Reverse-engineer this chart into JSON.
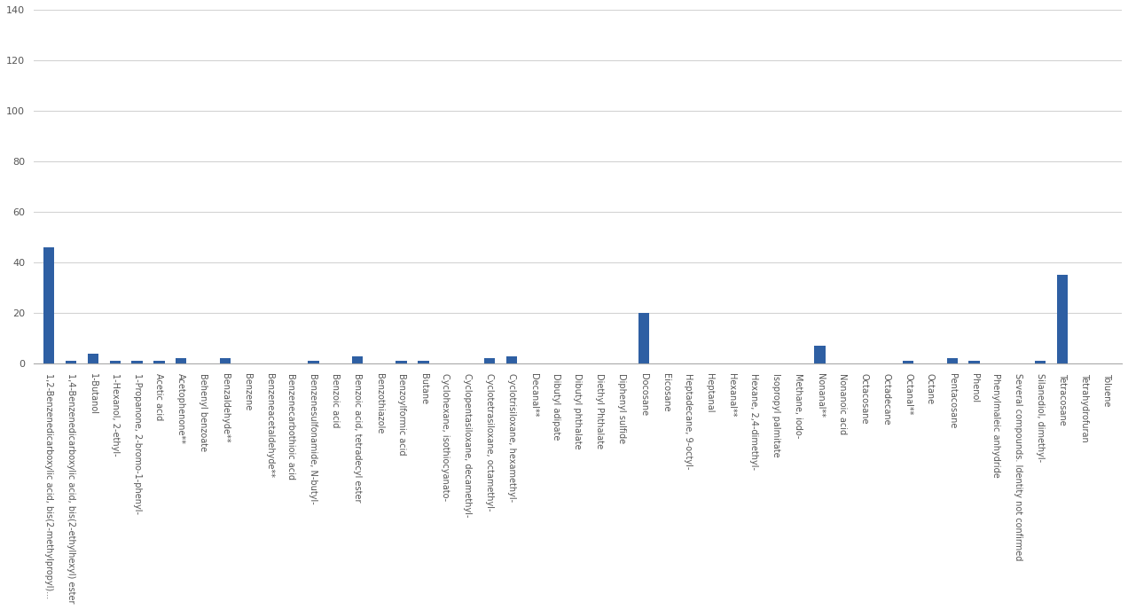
{
  "categories": [
    "1,2-Benzenedicarboxylic acid, bis(2-methylpropyl)...",
    "1,4-Benzenedicarboxylic acid, bis(2-ethylhexyl) ester",
    "1-Butanol",
    "1-Hexanol, 2-ethyl-",
    "1-Propanone, 2-bromo-1-phenyl-",
    "Acetic acid",
    "Acetophenone**",
    "Behenyl benzoate",
    "Benzaldehyde**",
    "Benzene",
    "Benzeneacetaldehyde**",
    "Benzenecarbothioic acid",
    "Benzenesulfonamide, N-butyl-",
    "Benzoic acid",
    "Benzoic acid, tetradecyl ester",
    "Benzothiazole",
    "Benzoylformic acid",
    "Butane",
    "Cyclohexane, isothiocyanato-",
    "Cyclopentasiloxane, decamethyl-",
    "Cyclotetrasiloxane, octamethyl-",
    "Cyclotrisiloxane, hexamethyl-",
    "Decanal**",
    "Dibutyl adipate",
    "Dibutyl phthalate",
    "Diethyl Phthalate",
    "Diphenyl sulfide",
    "Docosane",
    "Eicosane",
    "Heptadecane, 9-octyl-",
    "Heptanal",
    "Hexanal**",
    "Hexane, 2,4-dimethyl-",
    "Isopropyl palmitate",
    "Methane, iodo-",
    "Nonanal**",
    "Nonanoic acid",
    "Octacosane",
    "Octadecane",
    "Octanal**",
    "Octane",
    "Pentacosane",
    "Phenol",
    "Phenylmaleic anhydride",
    "Several compounds. Identity not confirmed",
    "Silanediol, dimethyl-",
    "Tetracosane",
    "Tetrahydrofuran",
    "Toluene"
  ],
  "values": [
    46,
    1,
    4,
    1,
    1,
    1,
    2,
    0,
    2,
    0,
    0,
    0,
    1,
    0,
    3,
    0,
    1,
    1,
    0,
    0,
    2,
    3,
    0,
    0,
    0,
    0,
    0,
    20,
    0,
    0,
    0,
    0,
    0,
    0,
    0,
    7,
    0,
    0,
    0,
    1,
    0,
    2,
    1,
    0,
    0,
    1,
    35,
    0,
    0
  ],
  "bar_color": "#2e5fa3",
  "ylim": [
    0,
    140
  ],
  "yticks": [
    0,
    20,
    40,
    60,
    80,
    100,
    120,
    140
  ],
  "grid_color": "#d3d3d3",
  "background_color": "#ffffff",
  "bar_width": 0.5,
  "tick_fontsize": 7.0,
  "ytick_fontsize": 8.0,
  "label_rotation": 270
}
